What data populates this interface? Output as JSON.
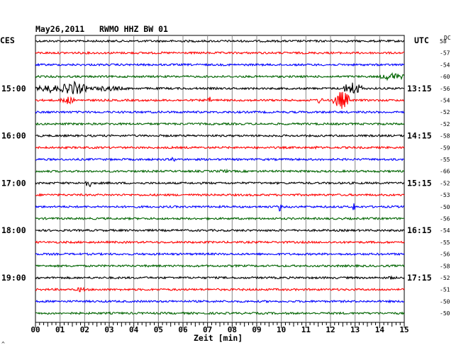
{
  "chart_data": {
    "type": "line",
    "title": "May26,2011   RWMO HHZ BW 01",
    "left_timezone": "CES",
    "right_timezone": "UTC",
    "dc_label": "DC",
    "xlabel": "Zeit [min]",
    "x_ticks": [
      "00",
      "01",
      "02",
      "03",
      "04",
      "05",
      "06",
      "07",
      "08",
      "09",
      "10",
      "11",
      "12",
      "13",
      "14",
      "15"
    ],
    "xlim": [
      0,
      15
    ],
    "left_hour_labels": [
      {
        "row": 4,
        "text": "15:00"
      },
      {
        "row": 8,
        "text": "16:00"
      },
      {
        "row": 12,
        "text": "17:00"
      },
      {
        "row": 16,
        "text": "18:00"
      },
      {
        "row": 20,
        "text": "19:00"
      }
    ],
    "right_hour_labels": [
      {
        "row": 4,
        "text": "13:15"
      },
      {
        "row": 8,
        "text": "14:15"
      },
      {
        "row": 12,
        "text": "15:15"
      },
      {
        "row": 16,
        "text": "16:15"
      },
      {
        "row": 20,
        "text": "17:15"
      }
    ],
    "colors": [
      "#000000",
      "#ff0000",
      "#0000ff",
      "#006400"
    ],
    "dc_values": [
      "58",
      "-57",
      "-54",
      "-60",
      "-56",
      "-54",
      "-52",
      "-52",
      "-58",
      "-59",
      "-55",
      "-66",
      "-52",
      "-53",
      "-50",
      "-56",
      "-54",
      "-55",
      "-56",
      "-58",
      "-52",
      "-51",
      "-50",
      "-50"
    ],
    "events": [
      {
        "row": 3,
        "start_min": 14.0,
        "end_min": 15.0,
        "amp": 6
      },
      {
        "row": 4,
        "start_min": 0.0,
        "end_min": 1.2,
        "amp": 6
      },
      {
        "row": 4,
        "start_min": 1.0,
        "end_min": 2.1,
        "amp": 10
      },
      {
        "row": 4,
        "start_min": 2.1,
        "end_min": 3.8,
        "amp": 4
      },
      {
        "row": 4,
        "start_min": 12.5,
        "end_min": 13.3,
        "amp": 10
      },
      {
        "row": 5,
        "start_min": 1.0,
        "end_min": 1.6,
        "amp": 6
      },
      {
        "row": 5,
        "start_min": 12.1,
        "end_min": 12.8,
        "amp": 14
      },
      {
        "row": 5,
        "start_min": 11.4,
        "end_min": 11.7,
        "amp": 5
      },
      {
        "row": 5,
        "start_min": 7.0,
        "end_min": 7.2,
        "amp": 5
      },
      {
        "row": 9,
        "start_min": 11.2,
        "end_min": 11.5,
        "amp": 3
      },
      {
        "row": 10,
        "start_min": 5.5,
        "end_min": 5.7,
        "amp": 4
      },
      {
        "row": 11,
        "start_min": 7.4,
        "end_min": 7.9,
        "amp": 3
      },
      {
        "row": 12,
        "start_min": 2.0,
        "end_min": 2.3,
        "amp": 7
      },
      {
        "row": 14,
        "start_min": 9.9,
        "end_min": 10.0,
        "amp": 10
      },
      {
        "row": 14,
        "start_min": 12.9,
        "end_min": 13.0,
        "amp": 8
      },
      {
        "row": 21,
        "start_min": 1.7,
        "end_min": 2.0,
        "amp": 5
      },
      {
        "row": 20,
        "start_min": 14.3,
        "end_min": 14.6,
        "amp": 3
      }
    ],
    "noise_amp": 1.4
  },
  "footer_mark": "^"
}
